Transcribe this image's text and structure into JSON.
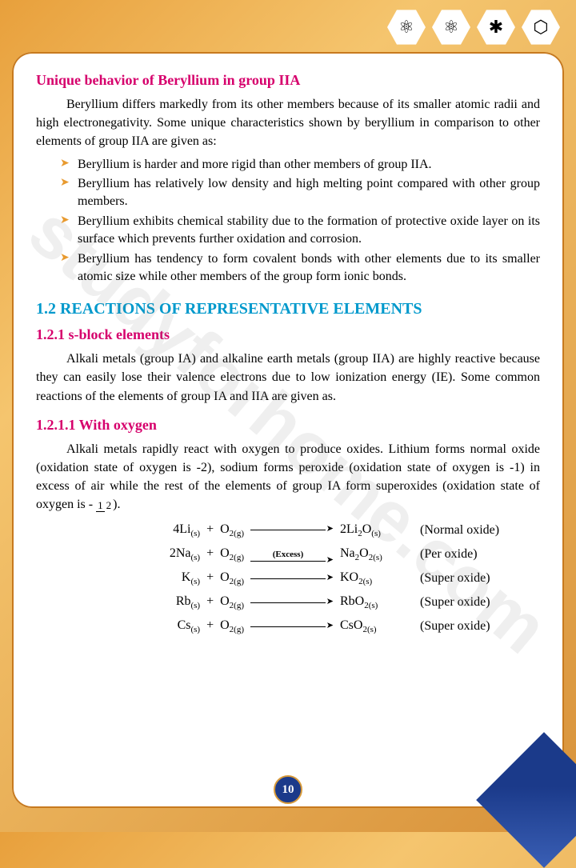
{
  "watermark": "studyforhome.com",
  "icons": [
    "⚛",
    "⚛",
    "✱",
    "⬡"
  ],
  "header1": "Unique behavior of Beryllium in group IIA",
  "intro": "Beryllium differs markedly from its other members because of its smaller atomic radii and high electronegativity. Some unique characteristics shown by beryllium in comparison to other elements of group IIA are given as:",
  "bullets": [
    "Beryllium is harder and more rigid than other members of group IIA.",
    "Beryllium has relatively low density and high melting point compared with other group members.",
    "Beryllium exhibits chemical stability due to the formation of protective oxide layer on its surface which prevents further oxidation and corrosion.",
    "Beryllium has tendency to form covalent bonds with other elements due to its smaller atomic size while other members of the group form ionic bonds."
  ],
  "section12": "1.2 REACTIONS OF REPRESENTATIVE ELEMENTS",
  "sub121": "1.2.1 s-block elements",
  "p121": "Alkali metals (group IA) and alkaline earth metals (group IIA) are highly reactive because they can easily lose their valence electrons due to low ionization energy (IE). Some common reactions of the elements of group IA and IIA are given as.",
  "sub1211": "1.2.1.1 With oxygen",
  "p1211a": "Alkali metals rapidly react with oxygen to produce oxides. Lithium forms normal oxide (oxidation state of oxygen is -2), sodium forms peroxide (oxidation state of oxygen is -1) in excess of air while the rest of the elements of group IA form superoxides (oxidation state of oxygen is -",
  "p1211b": ").",
  "reactions": [
    {
      "lhs_html": "4Li<sub>(s)</sub>&nbsp;&nbsp;+&nbsp;&nbsp;O<sub>2(g)</sub>",
      "top": "",
      "rhs_html": "2Li<sub>2</sub>O<sub>(s)</sub>",
      "note": "(Normal oxide)"
    },
    {
      "lhs_html": "2Na<sub>(s)</sub>&nbsp;&nbsp;+&nbsp;&nbsp;O<sub>2(g)</sub>",
      "top": "(Excess)",
      "rhs_html": "Na<sub>2</sub>O<sub>2(s)</sub>",
      "note": "(Per oxide)"
    },
    {
      "lhs_html": "K<sub>(s)</sub>&nbsp;&nbsp;+&nbsp;&nbsp;O<sub>2(g)</sub>",
      "top": "",
      "rhs_html": "KO<sub>2(s)</sub>",
      "note": "(Super oxide)"
    },
    {
      "lhs_html": "Rb<sub>(s)</sub>&nbsp;&nbsp;+&nbsp;&nbsp;O<sub>2(g)</sub>",
      "top": "",
      "rhs_html": "RbO<sub>2(s)</sub>",
      "note": "(Super oxide)"
    },
    {
      "lhs_html": "Cs<sub>(s)</sub>&nbsp;&nbsp;+&nbsp;&nbsp;O<sub>2(g)</sub>",
      "top": "",
      "rhs_html": "CsO<sub>2(s)</sub>",
      "note": "(Super oxide)"
    }
  ],
  "frac": {
    "num": "1",
    "den": "2"
  },
  "page_number": "10",
  "colors": {
    "pink": "#d6006c",
    "blue": "#0099cc",
    "orange": "#e89a2f",
    "navy": "#1b3a8a",
    "bg1": "#e8a03c"
  }
}
